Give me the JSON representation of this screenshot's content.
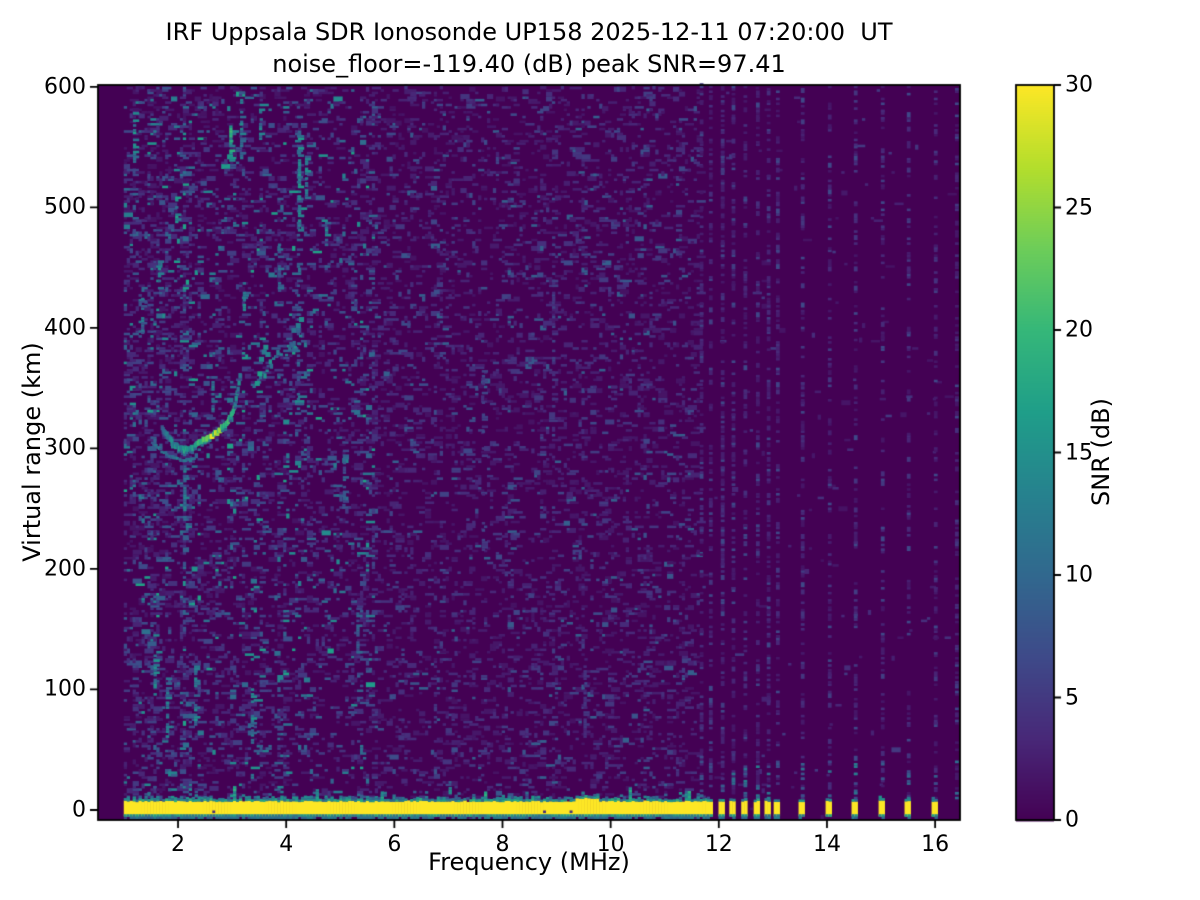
{
  "chart_data": {
    "type": "heatmap",
    "title": "IRF Uppsala SDR Ionosonde UP158 2025-12-11 07:20:00  UT",
    "subtitle": "noise_floor=-119.40 (dB) peak SNR=97.41",
    "station": "UP158",
    "datetime_ut": "2025-12-11 07:20:00 UT",
    "noise_floor_db": -119.4,
    "peak_snr_db": 97.41,
    "xlabel": "Frequency (MHz)",
    "ylabel": "Virtual range (km)",
    "xlim": [
      0.52,
      16.46
    ],
    "ylim": [
      -8.3,
      601.5
    ],
    "x_ticks": [
      2,
      4,
      6,
      8,
      10,
      12,
      14,
      16
    ],
    "y_ticks": [
      0,
      100,
      200,
      300,
      400,
      500,
      600
    ],
    "grid": false,
    "legend": "colorbar-right",
    "colorbar": {
      "label": "SNR (dB)",
      "min": 0,
      "max": 30,
      "ticks": [
        0,
        5,
        10,
        15,
        20,
        25,
        30
      ],
      "colormap": "viridis",
      "stops": [
        "#440154",
        "#482878",
        "#3e4a89",
        "#31688e",
        "#26828e",
        "#1f9e89",
        "#35b779",
        "#6dcd59",
        "#b4de2c",
        "#fde725"
      ]
    },
    "colors": {
      "figure_background": "#ffffff",
      "axes": "#000000",
      "cmap_low": "#440154",
      "cmap_high": "#fde725"
    },
    "freq_range_mhz": [
      1.0,
      16.42
    ],
    "ground_pulse": {
      "freq_start_mhz": 1.0,
      "freq_end_mhz": 11.76,
      "range_km": [
        -5.3,
        6.6
      ],
      "snr_db": 30
    },
    "ground_pulse_dashes_mhz": [
      11.82,
      12.04,
      12.24,
      12.46,
      12.69,
      12.89,
      13.06,
      13.52,
      14.02,
      14.5,
      15.0,
      15.48,
      15.98
    ],
    "interference_columns_mhz": [
      11.65,
      11.82,
      12.04,
      12.24,
      12.46,
      12.69,
      12.89,
      13.06,
      13.52,
      14.02,
      14.5,
      15.0,
      15.48,
      15.98,
      16.37
    ],
    "echo_trace_main": {
      "points": [
        [
          1.68,
          315
        ],
        [
          1.78,
          308
        ],
        [
          1.88,
          302
        ],
        [
          1.98,
          299
        ],
        [
          2.08,
          297
        ],
        [
          2.18,
          297
        ],
        [
          2.28,
          299
        ],
        [
          2.38,
          303
        ],
        [
          2.5,
          306
        ],
        [
          2.62,
          309
        ],
        [
          2.74,
          313
        ],
        [
          2.86,
          318
        ],
        [
          2.94,
          324
        ],
        [
          3.0,
          331
        ],
        [
          3.05,
          339
        ],
        [
          3.09,
          348
        ],
        [
          3.12,
          357
        ]
      ],
      "snr_profile": [
        [
          1.68,
          9
        ],
        [
          1.9,
          13
        ],
        [
          2.1,
          15
        ],
        [
          2.3,
          17
        ],
        [
          2.5,
          20
        ],
        [
          2.62,
          25
        ],
        [
          2.72,
          22
        ],
        [
          2.85,
          18
        ],
        [
          3.0,
          16
        ],
        [
          3.12,
          12
        ]
      ]
    },
    "echo_trace_lower": {
      "points": [
        [
          1.5,
          303
        ],
        [
          1.7,
          296
        ],
        [
          1.9,
          291
        ],
        [
          2.1,
          289
        ],
        [
          2.3,
          290
        ]
      ],
      "snr": 11
    },
    "echo_trace_upper": {
      "points": [
        [
          3.38,
          346
        ],
        [
          3.55,
          358
        ],
        [
          3.72,
          368
        ],
        [
          3.9,
          377
        ],
        [
          4.08,
          384
        ],
        [
          4.26,
          391
        ]
      ],
      "snr": 13,
      "blobs": [
        [
          3.42,
          352
        ],
        [
          3.47,
          360
        ],
        [
          3.5,
          372
        ],
        [
          3.55,
          378
        ],
        [
          3.58,
          382
        ],
        [
          3.62,
          376
        ],
        [
          4.1,
          396
        ],
        [
          4.18,
          400
        ],
        [
          4.24,
          405
        ]
      ]
    },
    "noise_streaks": [
      [
        1.17,
        535,
        578,
        13
      ],
      [
        1.32,
        395,
        425,
        10
      ],
      [
        1.55,
        95,
        130,
        12
      ],
      [
        1.63,
        428,
        455,
        12
      ],
      [
        1.78,
        60,
        110,
        11
      ],
      [
        1.95,
        487,
        509,
        14
      ],
      [
        2.1,
        240,
        285,
        11
      ],
      [
        2.3,
        70,
        120,
        12
      ],
      [
        2.62,
        330,
        360,
        10
      ],
      [
        2.95,
        538,
        568,
        16
      ],
      [
        3.15,
        540,
        594,
        12
      ],
      [
        3.2,
        410,
        440,
        12
      ],
      [
        3.35,
        55,
        100,
        12
      ],
      [
        3.5,
        556,
        584,
        11
      ],
      [
        3.85,
        430,
        470,
        9
      ],
      [
        4.2,
        330,
        600,
        8
      ],
      [
        4.22,
        480,
        560,
        13
      ],
      [
        4.35,
        505,
        545,
        12
      ],
      [
        4.72,
        468,
        490,
        12
      ],
      [
        5.05,
        255,
        300,
        8
      ],
      [
        5.3,
        130,
        170,
        8
      ],
      [
        7.62,
        215,
        365,
        5
      ],
      [
        8.92,
        330,
        480,
        5
      ],
      [
        9.5,
        60,
        120,
        4
      ]
    ],
    "noise_zones": [
      {
        "freq_mhz": [
          1.0,
          2.3
        ],
        "density": 0.16,
        "max_snr_db": 17
      },
      {
        "freq_mhz": [
          2.3,
          5.6
        ],
        "density": 0.13,
        "max_snr_db": 17
      },
      {
        "freq_mhz": [
          5.6,
          11.6
        ],
        "density": 0.12,
        "max_snr_db": 9
      },
      {
        "freq_mhz": [
          11.6,
          16.42
        ],
        "density": 0.004,
        "max_snr_db": 5
      }
    ]
  }
}
